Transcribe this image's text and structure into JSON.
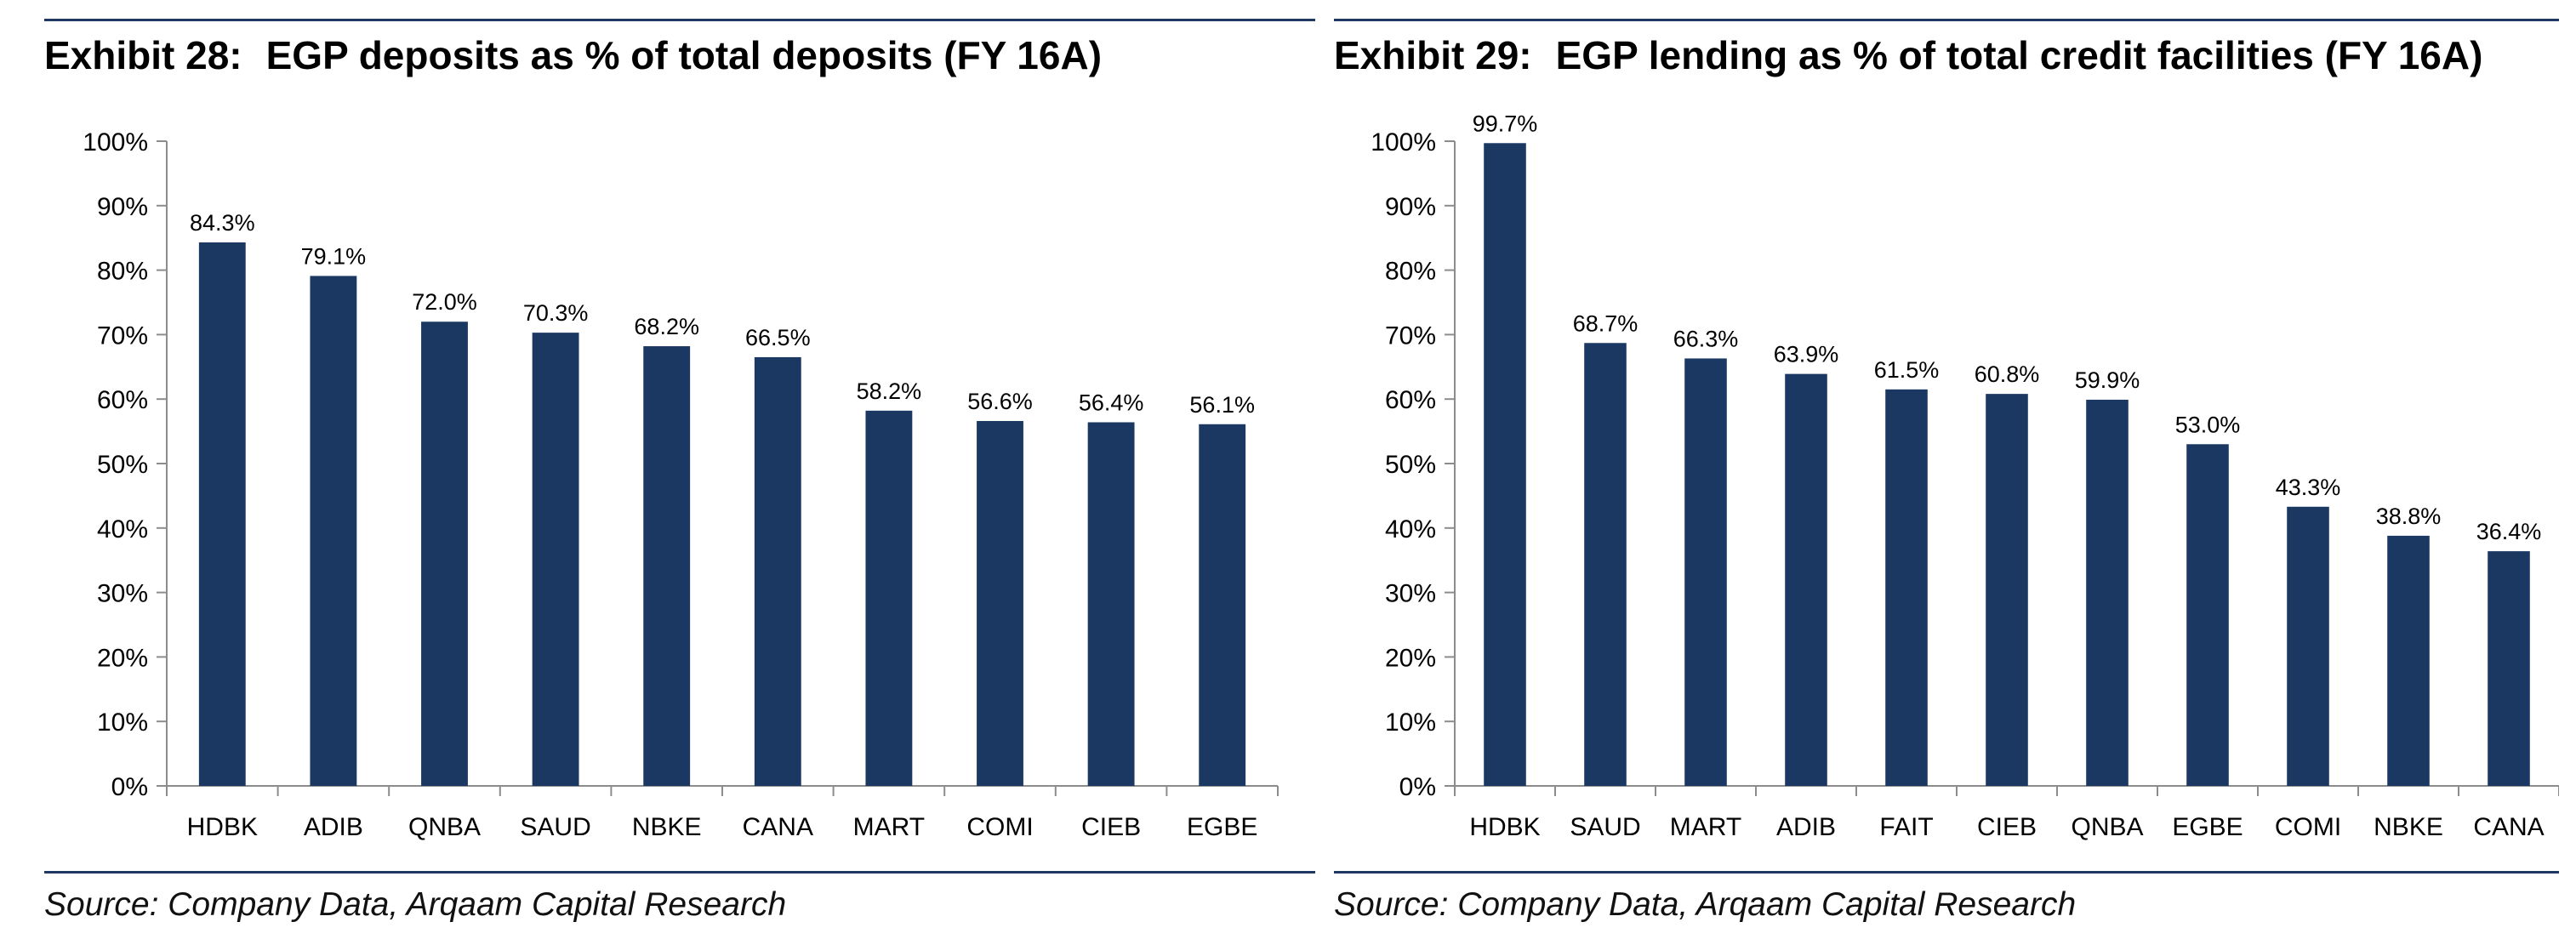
{
  "exhibits": [
    {
      "number_label": "Exhibit 28:",
      "title": "EGP deposits as % of total deposits (FY 16A)",
      "source": "Source: Company Data, Arqaam Capital Research",
      "chart_data": {
        "type": "bar",
        "title": "EGP deposits as % of total deposits (FY 16A)",
        "categories": [
          "HDBK",
          "ADIB",
          "QNBA",
          "SAUD",
          "NBKE",
          "CANA",
          "MART",
          "COMI",
          "CIEB",
          "EGBE"
        ],
        "values": [
          84.3,
          79.1,
          72.0,
          70.3,
          68.2,
          66.5,
          58.2,
          56.6,
          56.4,
          56.1
        ],
        "data_labels": [
          "84.3%",
          "79.1%",
          "72.0%",
          "70.3%",
          "68.2%",
          "66.5%",
          "58.2%",
          "56.6%",
          "56.4%",
          "56.1%"
        ],
        "ylim": [
          0,
          100
        ],
        "yticks": [
          "0%",
          "10%",
          "20%",
          "30%",
          "40%",
          "50%",
          "60%",
          "70%",
          "80%",
          "90%",
          "100%"
        ],
        "bar_color": "#1a3862",
        "grid": false,
        "legend": "none"
      }
    },
    {
      "number_label": "Exhibit 29:",
      "title": "EGP lending as % of total credit facilities (FY 16A)",
      "source": "Source: Company Data, Arqaam Capital Research",
      "chart_data": {
        "type": "bar",
        "title": "EGP lending as % of total credit facilities (FY 16A)",
        "categories": [
          "HDBK",
          "SAUD",
          "MART",
          "ADIB",
          "FAIT",
          "CIEB",
          "QNBA",
          "EGBE",
          "COMI",
          "NBKE",
          "CANA"
        ],
        "values": [
          99.7,
          68.7,
          66.3,
          63.9,
          61.5,
          60.8,
          59.9,
          53.0,
          43.3,
          38.8,
          36.4
        ],
        "data_labels": [
          "99.7%",
          "68.7%",
          "66.3%",
          "63.9%",
          "61.5%",
          "60.8%",
          "59.9%",
          "53.0%",
          "43.3%",
          "38.8%",
          "36.4%"
        ],
        "ylim": [
          0,
          100
        ],
        "yticks": [
          "0%",
          "10%",
          "20%",
          "30%",
          "40%",
          "50%",
          "60%",
          "70%",
          "80%",
          "90%",
          "100%"
        ],
        "bar_color": "#1a3862",
        "grid": false,
        "legend": "none"
      }
    }
  ],
  "colors": {
    "rule": "#1f3864",
    "bar": "#1a3862"
  }
}
